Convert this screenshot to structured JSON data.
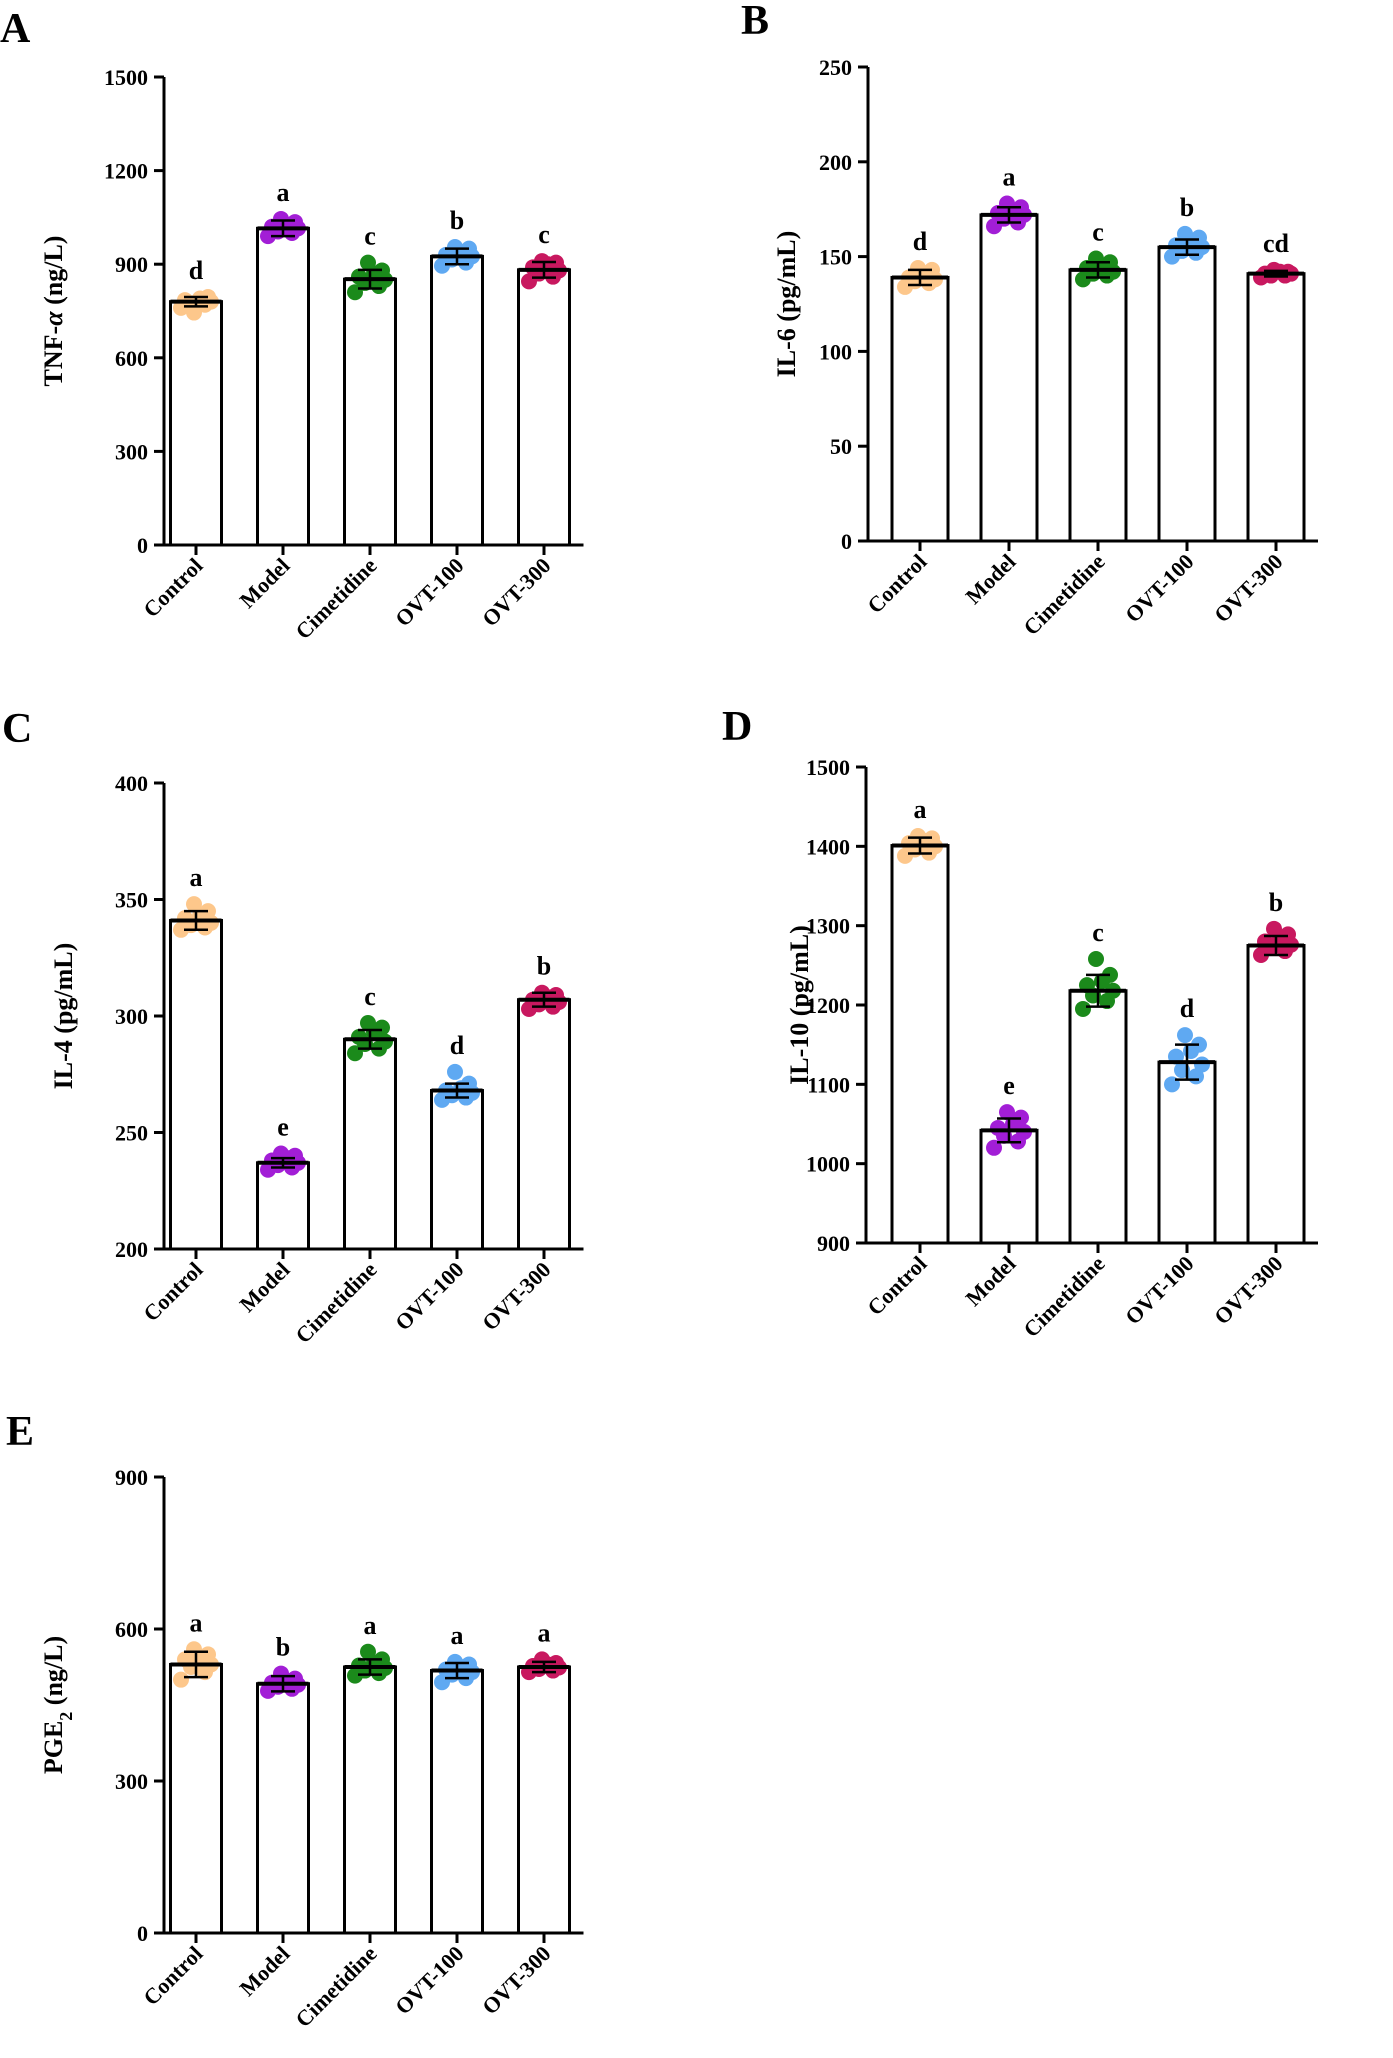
{
  "colors": {
    "Control": "#FDC78B",
    "Model": "#A21ED6",
    "Cimetidine": "#1B8A1B",
    "OVT-100": "#5FA9F2",
    "OVT-300": "#C8185F",
    "axis": "#000000",
    "bar_fill": "#FFFFFF"
  },
  "chart_data": [
    {
      "panel": "A",
      "type": "bar",
      "categories": [
        "Control",
        "Model",
        "Cimetidine",
        "OVT-100",
        "OVT-300"
      ],
      "values": [
        780,
        1015,
        852,
        925,
        882
      ],
      "errors": [
        15,
        25,
        30,
        25,
        25
      ],
      "significance": [
        "d",
        "a",
        "c",
        "b",
        "c"
      ],
      "points": [
        [
          760,
          770,
          775,
          780,
          785,
          790,
          795,
          745
        ],
        [
          990,
          1000,
          1005,
          1015,
          1020,
          1025,
          1035,
          1045
        ],
        [
          810,
          830,
          840,
          850,
          860,
          870,
          880,
          905
        ],
        [
          895,
          905,
          915,
          925,
          930,
          940,
          950,
          955
        ],
        [
          845,
          860,
          870,
          880,
          890,
          900,
          905,
          910
        ]
      ],
      "ylabel": "TNF-α (ng/L)",
      "ylim": [
        0,
        1500
      ],
      "yticks": [
        0,
        300,
        600,
        900,
        1200,
        1500
      ],
      "grid": false
    },
    {
      "panel": "B",
      "type": "bar",
      "categories": [
        "Control",
        "Model",
        "Cimetidine",
        "OVT-100",
        "OVT-300"
      ],
      "values": [
        139,
        172,
        143,
        155,
        141
      ],
      "errors": [
        4,
        4,
        4,
        4,
        1.5
      ],
      "significance": [
        "d",
        "a",
        "c",
        "b",
        "cd"
      ],
      "points": [
        [
          134,
          136,
          137,
          138,
          139,
          141,
          143,
          144
        ],
        [
          166,
          168,
          170,
          172,
          173,
          174,
          176,
          178
        ],
        [
          138,
          140,
          141,
          142,
          144,
          145,
          147,
          149
        ],
        [
          150,
          152,
          153,
          155,
          156,
          158,
          160,
          162
        ],
        [
          139,
          140,
          140,
          141,
          141,
          142,
          142,
          143
        ]
      ],
      "ylabel": "IL-6 (pg/mL)",
      "ylim": [
        0,
        250
      ],
      "yticks": [
        0,
        50,
        100,
        150,
        200,
        250
      ],
      "grid": false
    },
    {
      "panel": "C",
      "type": "bar",
      "categories": [
        "Control",
        "Model",
        "Cimetidine",
        "OVT-100",
        "OVT-300"
      ],
      "values": [
        341,
        237,
        290,
        268,
        307
      ],
      "errors": [
        4,
        2,
        4,
        3,
        3
      ],
      "significance": [
        "a",
        "e",
        "c",
        "d",
        "b"
      ],
      "points": [
        [
          337,
          338,
          339,
          340,
          342,
          343,
          345,
          348
        ],
        [
          234,
          235,
          236,
          237,
          238,
          239,
          240,
          241
        ],
        [
          284,
          286,
          288,
          289,
          291,
          293,
          295,
          297
        ],
        [
          264,
          265,
          266,
          267,
          268,
          269,
          271,
          276
        ],
        [
          303,
          304,
          305,
          306,
          307,
          308,
          309,
          310
        ]
      ],
      "ylabel": "IL-4 (pg/mL)",
      "ylim": [
        200,
        400
      ],
      "yticks": [
        200,
        250,
        300,
        350,
        400
      ],
      "grid": false
    },
    {
      "panel": "D",
      "type": "bar",
      "categories": [
        "Control",
        "Model",
        "Cimetidine",
        "OVT-100",
        "OVT-300"
      ],
      "values": [
        1401,
        1042,
        1218,
        1128,
        1275
      ],
      "errors": [
        10,
        15,
        20,
        22,
        12
      ],
      "significance": [
        "a",
        "e",
        "c",
        "d",
        "b"
      ],
      "points": [
        [
          1388,
          1392,
          1396,
          1400,
          1404,
          1407,
          1410,
          1413
        ],
        [
          1020,
          1028,
          1035,
          1040,
          1045,
          1050,
          1058,
          1065
        ],
        [
          1195,
          1205,
          1212,
          1218,
          1225,
          1230,
          1238,
          1258
        ],
        [
          1100,
          1110,
          1118,
          1125,
          1135,
          1142,
          1150,
          1162
        ],
        [
          1263,
          1268,
          1272,
          1276,
          1280,
          1284,
          1289,
          1296
        ]
      ],
      "ylabel": "IL-10 (pg/mL)",
      "ylim": [
        900,
        1500
      ],
      "yticks": [
        900,
        1000,
        1100,
        1200,
        1300,
        1400,
        1500
      ],
      "grid": false
    },
    {
      "panel": "E",
      "type": "bar",
      "categories": [
        "Control",
        "Model",
        "Cimetidine",
        "OVT-100",
        "OVT-300"
      ],
      "values": [
        530,
        492,
        525,
        518,
        525
      ],
      "errors": [
        25,
        15,
        15,
        15,
        10
      ],
      "significance": [
        "a",
        "b",
        "a",
        "a",
        "a"
      ],
      "points": [
        [
          500,
          515,
          525,
          530,
          540,
          545,
          550,
          560
        ],
        [
          478,
          482,
          486,
          490,
          494,
          498,
          502,
          512
        ],
        [
          508,
          513,
          518,
          523,
          528,
          533,
          540,
          555
        ],
        [
          495,
          503,
          510,
          515,
          520,
          525,
          530,
          535
        ],
        [
          515,
          518,
          521,
          524,
          527,
          530,
          533,
          540
        ]
      ],
      "ylabel": "PGE2 (ng/L)",
      "ylim": [
        0,
        900
      ],
      "yticks": [
        0,
        300,
        600,
        900
      ],
      "grid": false
    }
  ]
}
